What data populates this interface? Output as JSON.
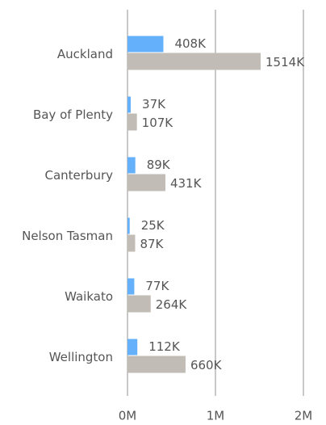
{
  "chart_data": {
    "type": "barh",
    "categories": [
      "Auckland",
      "Bay of Plenty",
      "Canterbury",
      "Nelson Tasman",
      "Waikato",
      "Wellington"
    ],
    "series": [
      {
        "color": "#64b0fa",
        "values": [
          408000,
          37000,
          89000,
          25000,
          77000,
          112000
        ],
        "value_labels": [
          "408K",
          "37K",
          "89K",
          "25K",
          "77K",
          "112K"
        ]
      },
      {
        "color": "#c2bcb6",
        "values": [
          1514000,
          107000,
          431000,
          87000,
          264000,
          660000
        ],
        "value_labels": [
          "1514K",
          "107K",
          "431K",
          "87K",
          "264K",
          "660K"
        ]
      }
    ],
    "xlim": [
      0,
      2000000
    ],
    "xticks": [
      {
        "value": 0,
        "label": "0M"
      },
      {
        "value": 1000000,
        "label": "1M"
      },
      {
        "value": 2000000,
        "label": "2M"
      }
    ],
    "grid": true
  }
}
